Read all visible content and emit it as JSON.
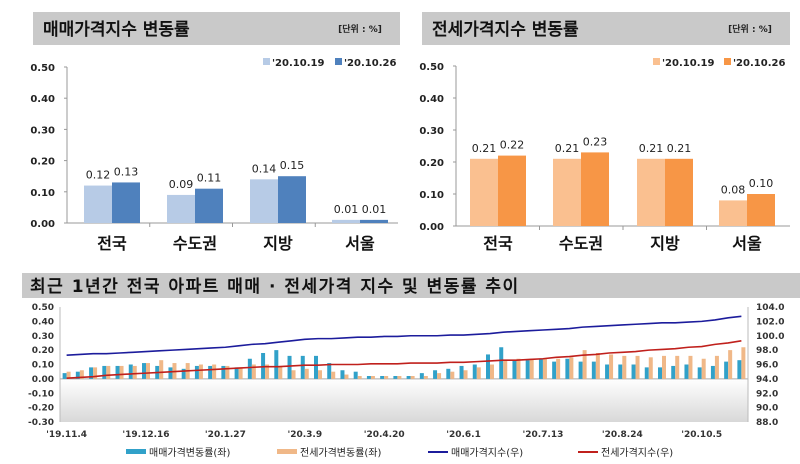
{
  "chart_data": [
    {
      "type": "bar",
      "title": "매매가격지수 변동률",
      "unit": "[단위 : %]",
      "categories": [
        "전국",
        "수도권",
        "지방",
        "서울"
      ],
      "series": [
        {
          "name": "'20.10.19",
          "values": [
            0.12,
            0.09,
            0.14,
            0.01
          ],
          "color": "#b7cbe6"
        },
        {
          "name": "'20.10.26",
          "values": [
            0.13,
            0.11,
            0.15,
            0.01
          ],
          "color": "#4f81bd"
        }
      ],
      "ylim": [
        0,
        0.5
      ],
      "yticks": [
        "0.00",
        "0.10",
        "0.20",
        "0.30",
        "0.40",
        "0.50"
      ],
      "legend": "top-right",
      "grid": false
    },
    {
      "type": "bar",
      "title": "전세가격지수 변동률",
      "unit": "[단위 : %]",
      "categories": [
        "전국",
        "수도권",
        "지방",
        "서울"
      ],
      "series": [
        {
          "name": "'20.10.19",
          "values": [
            0.21,
            0.21,
            0.21,
            0.08
          ],
          "color": "#fac090"
        },
        {
          "name": "'20.10.26",
          "values": [
            0.22,
            0.23,
            0.21,
            0.1
          ],
          "color": "#f79646"
        }
      ],
      "ylim": [
        0,
        0.5
      ],
      "yticks": [
        "0.00",
        "0.10",
        "0.20",
        "0.30",
        "0.40",
        "0.50"
      ],
      "legend": "top-right",
      "grid": false
    },
    {
      "type": "bar+line",
      "title": "최근 1년간 전국 아파트 매매 · 전세가격 지수 및 변동률 추이",
      "xticks": [
        "'19.11.4",
        "'19.12.16",
        "'20.1.27",
        "'20.3.9",
        "'20.4.20",
        "'20.6.1",
        "'20.7.13",
        "'20.8.24",
        "'20.10.5"
      ],
      "xtick_every_weeks": 6,
      "ylim_left": [
        -0.3,
        0.5
      ],
      "yticks_left": [
        "0.50",
        "0.40",
        "0.30",
        "0.20",
        "0.10",
        "0.00",
        "-0.10",
        "-0.20",
        "-0.30"
      ],
      "ylim_right": [
        88,
        104
      ],
      "yticks_right": [
        "104.0",
        "102.0",
        "100.0",
        "98.0",
        "96.0",
        "94.0",
        "92.0",
        "90.0",
        "88.0"
      ],
      "legend": "bottom",
      "series": [
        {
          "name": "매매가격변동률(좌)",
          "kind": "bar",
          "axis": "left",
          "color": "#31a1c9",
          "values": [
            0.04,
            0.05,
            0.08,
            0.09,
            0.09,
            0.1,
            0.11,
            0.09,
            0.08,
            0.07,
            0.09,
            0.09,
            0.09,
            0.08,
            0.14,
            0.18,
            0.2,
            0.16,
            0.16,
            0.16,
            0.11,
            0.06,
            0.05,
            0.02,
            0.02,
            0.02,
            0.02,
            0.04,
            0.06,
            0.07,
            0.09,
            0.1,
            0.17,
            0.22,
            0.13,
            0.13,
            0.14,
            0.12,
            0.14,
            0.12,
            0.12,
            0.1,
            0.1,
            0.1,
            0.08,
            0.08,
            0.09,
            0.1,
            0.08,
            0.09,
            0.12,
            0.13
          ]
        },
        {
          "name": "전세가격변동률(좌)",
          "kind": "bar",
          "axis": "left",
          "color": "#f0b888",
          "values": [
            0.05,
            0.06,
            0.08,
            0.09,
            0.09,
            0.09,
            0.11,
            0.13,
            0.11,
            0.11,
            0.1,
            0.1,
            0.09,
            0.08,
            0.1,
            0.1,
            0.09,
            0.06,
            0.07,
            0.06,
            0.05,
            0.03,
            0.02,
            0.02,
            0.02,
            0.02,
            0.02,
            0.02,
            0.04,
            0.05,
            0.06,
            0.08,
            0.1,
            0.13,
            0.14,
            0.14,
            0.14,
            0.14,
            0.15,
            0.2,
            0.18,
            0.17,
            0.16,
            0.16,
            0.15,
            0.16,
            0.16,
            0.16,
            0.14,
            0.16,
            0.2,
            0.22
          ]
        },
        {
          "name": "매매가격지수(우)",
          "kind": "line",
          "axis": "right",
          "color": "#1c1c9c",
          "values": [
            97.3,
            97.4,
            97.5,
            97.5,
            97.6,
            97.7,
            97.8,
            97.9,
            98.0,
            98.1,
            98.2,
            98.3,
            98.4,
            98.6,
            98.8,
            98.9,
            99.1,
            99.3,
            99.5,
            99.6,
            99.6,
            99.7,
            99.8,
            99.8,
            99.9,
            99.9,
            100.0,
            100.0,
            100.0,
            100.1,
            100.1,
            100.2,
            100.3,
            100.5,
            100.6,
            100.7,
            100.8,
            100.9,
            101.0,
            101.2,
            101.3,
            101.4,
            101.5,
            101.6,
            101.7,
            101.8,
            101.8,
            101.9,
            102.0,
            102.2,
            102.5,
            102.7
          ]
        },
        {
          "name": "전세가격지수(우)",
          "kind": "line",
          "axis": "right",
          "color": "#c0201c",
          "values": [
            94.1,
            94.2,
            94.3,
            94.5,
            94.6,
            94.7,
            94.8,
            94.9,
            95.0,
            95.1,
            95.2,
            95.3,
            95.4,
            95.5,
            95.6,
            95.7,
            95.7,
            95.8,
            95.9,
            95.9,
            96.0,
            96.0,
            96.0,
            96.1,
            96.1,
            96.1,
            96.2,
            96.2,
            96.2,
            96.3,
            96.3,
            96.4,
            96.5,
            96.6,
            96.6,
            96.7,
            96.8,
            97.0,
            97.1,
            97.3,
            97.4,
            97.6,
            97.7,
            97.8,
            98.0,
            98.1,
            98.2,
            98.4,
            98.5,
            98.8,
            99.0,
            99.3
          ]
        }
      ]
    }
  ]
}
